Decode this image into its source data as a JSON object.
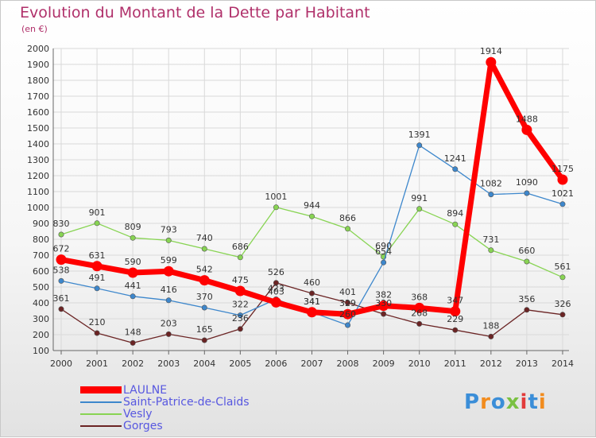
{
  "header": {
    "title": "Evolution du Montant de la Dette par Habitant",
    "unit": "(en €)"
  },
  "brand": {
    "letters": [
      "P",
      "r",
      "o",
      "x",
      "i",
      "t",
      "i"
    ],
    "colors": [
      "#3b8ed8",
      "#f28c1e",
      "#3b8ed8",
      "#7ac142",
      "#e23b3b",
      "#3b8ed8",
      "#f28c1e"
    ]
  },
  "chart_data": {
    "type": "line",
    "title": "Evolution du Montant de la Dette par Habitant",
    "subtitle": "(en €)",
    "xlabel": "",
    "ylabel": "",
    "x": [
      "2000",
      "2001",
      "2002",
      "2003",
      "2004",
      "2005",
      "2006",
      "2007",
      "2008",
      "2009",
      "2010",
      "2011",
      "2012",
      "2013",
      "2014"
    ],
    "ylim": [
      100,
      2000
    ],
    "yticks": [
      100,
      200,
      300,
      400,
      500,
      600,
      700,
      800,
      900,
      1000,
      1100,
      1200,
      1300,
      1400,
      1500,
      1600,
      1700,
      1800,
      1900,
      2000
    ],
    "grid": true,
    "legend_position": "bottom-left",
    "series": [
      {
        "name": "LAULNE",
        "color": "#ff0000",
        "values": [
          672,
          631,
          590,
          599,
          542,
          475,
          403,
          341,
          329,
          382,
          368,
          347,
          1914,
          1488,
          1175
        ],
        "labels": [
          "672",
          "631",
          "590",
          "599",
          "542",
          "475",
          "403",
          "341",
          "329",
          "382",
          "368",
          "347",
          "1914",
          "1488",
          "1175"
        ]
      },
      {
        "name": "Saint-Patrice-de-Claids",
        "color": "#3d87cc",
        "values": [
          538,
          491,
          441,
          416,
          370,
          322,
          423,
          341,
          260,
          654,
          1391,
          1241,
          1082,
          1090,
          1021
        ],
        "labels": [
          "538",
          "491",
          "441",
          "416",
          "370",
          "322",
          "423",
          "341",
          "260",
          "654",
          "1391",
          "1241",
          "1082",
          "1090",
          "1021"
        ]
      },
      {
        "name": "Vesly",
        "color": "#88d453",
        "values": [
          830,
          901,
          809,
          793,
          740,
          686,
          1001,
          944,
          866,
          690,
          991,
          894,
          731,
          660,
          561
        ],
        "labels": [
          "830",
          "901",
          "809",
          "793",
          "740",
          "686",
          "1001",
          "944",
          "866",
          "690",
          "991",
          "894",
          "731",
          "660",
          "561"
        ]
      },
      {
        "name": "Gorges",
        "color": "#6b2424",
        "values": [
          361,
          210,
          148,
          203,
          165,
          236,
          526,
          460,
          401,
          330,
          268,
          229,
          188,
          356,
          326
        ],
        "labels": [
          "361",
          "210",
          "148",
          "203",
          "165",
          "236",
          "526",
          "460",
          "401",
          "330",
          "268",
          "229",
          "188",
          "356",
          "326"
        ]
      }
    ]
  }
}
